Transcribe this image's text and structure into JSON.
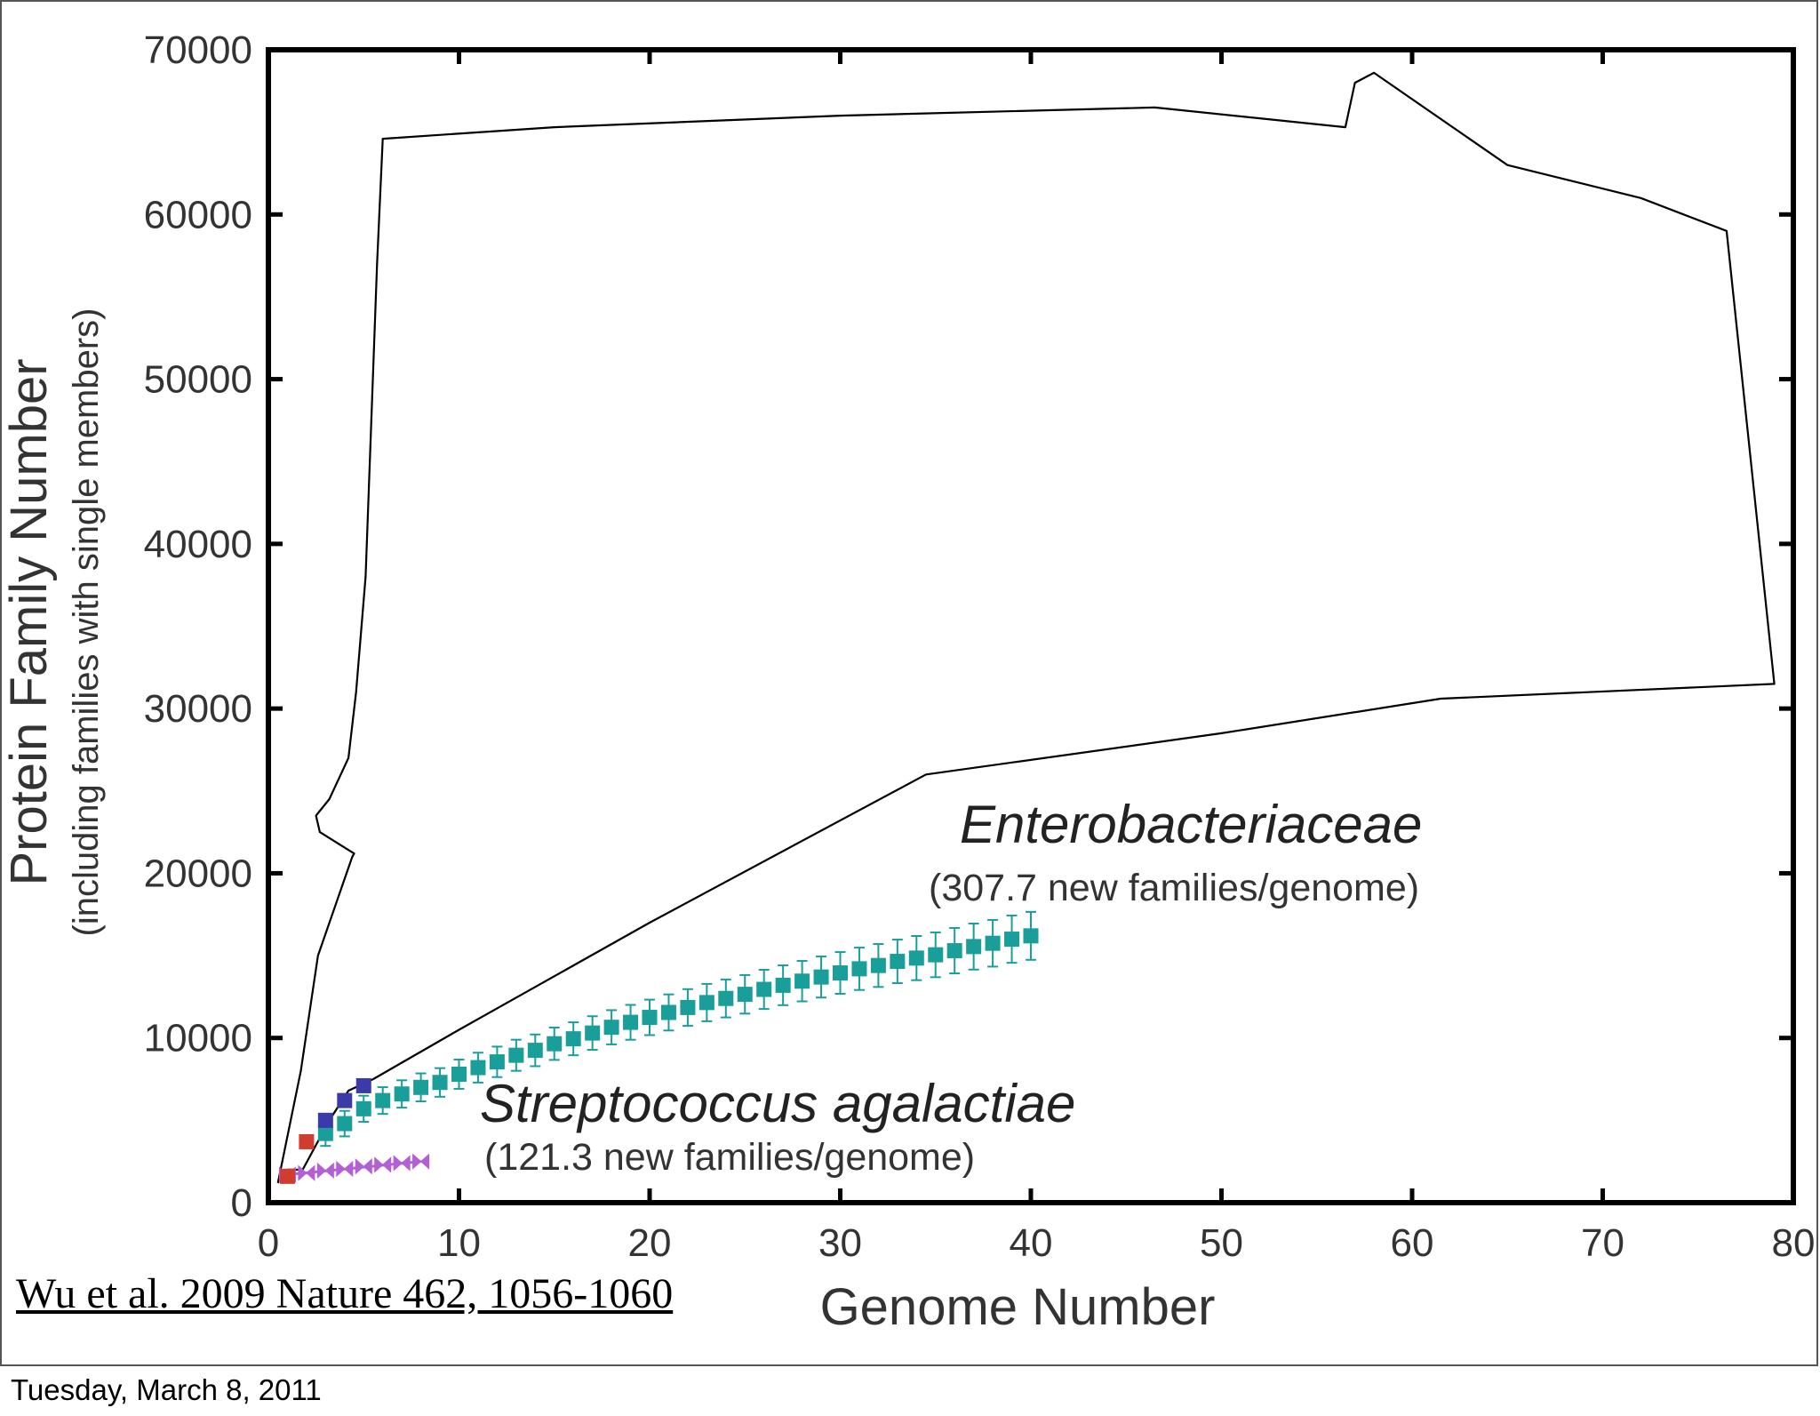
{
  "citation": "Wu et al. 2009 Nature 462, 1056-1060",
  "footer_date": "Tuesday, March 8, 2011",
  "colors": {
    "enterobacteriaceae": "#1a9e9a",
    "streptococcus": "#b35fd6",
    "early_red": "#d23b2f",
    "early_blue": "#3a3aa8"
  },
  "chart_data": {
    "type": "scatter",
    "xlabel": "Genome Number",
    "ylabel": "Protein Family Number",
    "ylabel_sub": "(including families with single members)",
    "xlim": [
      0,
      80
    ],
    "ylim": [
      0,
      70000
    ],
    "xticks": [
      0,
      10,
      20,
      30,
      40,
      50,
      60,
      70,
      80
    ],
    "yticks": [
      0,
      10000,
      20000,
      30000,
      40000,
      50000,
      60000,
      70000
    ],
    "grid": false,
    "annotations": [
      {
        "title": "Enterobacteriaceae",
        "subtitle": "(307.7 new families/genome)"
      },
      {
        "title": "Streptococcus agalactiae",
        "subtitle": "(121.3 new families/genome)"
      }
    ],
    "outline": {
      "description": "hand-drawn enclosing outline",
      "points": [
        [
          0.5,
          1200
        ],
        [
          1,
          2000
        ],
        [
          1.8,
          2000
        ],
        [
          3.2,
          5000
        ],
        [
          4.2,
          6800
        ],
        [
          5.5,
          7500
        ],
        [
          10,
          10500
        ],
        [
          20,
          17000
        ],
        [
          34.5,
          26000
        ],
        [
          50,
          28500
        ],
        [
          61.5,
          30600
        ],
        [
          79,
          31500
        ],
        [
          76.5,
          59000
        ],
        [
          72,
          61000
        ],
        [
          65,
          63000
        ],
        [
          58,
          68600
        ],
        [
          57,
          68000
        ],
        [
          56.5,
          65300
        ],
        [
          46.5,
          66500
        ],
        [
          30,
          66000
        ],
        [
          15,
          65300
        ],
        [
          6,
          64600
        ],
        [
          5.7,
          57000
        ],
        [
          5.1,
          38000
        ],
        [
          4.6,
          31000
        ],
        [
          4.2,
          27000
        ],
        [
          3.2,
          24500
        ],
        [
          2.5,
          23500
        ],
        [
          2.7,
          22500
        ],
        [
          4.5,
          21200
        ],
        [
          4.4,
          21000
        ],
        [
          2.6,
          15000
        ],
        [
          1.7,
          8000
        ],
        [
          0.5,
          1200
        ]
      ]
    },
    "series": [
      {
        "name": "Enterobacteriaceae",
        "marker": "square",
        "error_bars": true,
        "x": [
          3,
          4,
          5,
          6,
          7,
          8,
          9,
          10,
          11,
          12,
          13,
          14,
          15,
          16,
          17,
          18,
          19,
          20,
          21,
          22,
          23,
          24,
          25,
          26,
          27,
          28,
          29,
          30,
          31,
          32,
          33,
          34,
          35,
          36,
          37,
          38,
          39,
          40
        ],
        "values": [
          4200,
          4800,
          5700,
          6200,
          6600,
          7000,
          7300,
          7800,
          8200,
          8550,
          8950,
          9250,
          9650,
          9950,
          10300,
          10650,
          10950,
          11250,
          11550,
          11850,
          12150,
          12400,
          12650,
          12950,
          13200,
          13450,
          13700,
          13950,
          14200,
          14400,
          14650,
          14850,
          15050,
          15300,
          15550,
          15750,
          16000,
          16200
        ]
      },
      {
        "name": "Streptococcus agalactiae",
        "marker": "bowtie",
        "error_bars": false,
        "x": [
          1,
          2,
          3,
          4,
          5,
          6,
          7,
          8
        ],
        "values": [
          1700,
          1800,
          1950,
          2050,
          2200,
          2300,
          2400,
          2500
        ]
      },
      {
        "name": "",
        "marker": "square",
        "error_bars": false,
        "x": [
          1,
          2
        ],
        "values": [
          1600,
          3700
        ],
        "color_key": "early_red"
      },
      {
        "name": "",
        "marker": "square",
        "error_bars": false,
        "x": [
          3,
          4,
          5
        ],
        "values": [
          5000,
          6200,
          7100
        ],
        "color_key": "early_blue"
      }
    ]
  }
}
